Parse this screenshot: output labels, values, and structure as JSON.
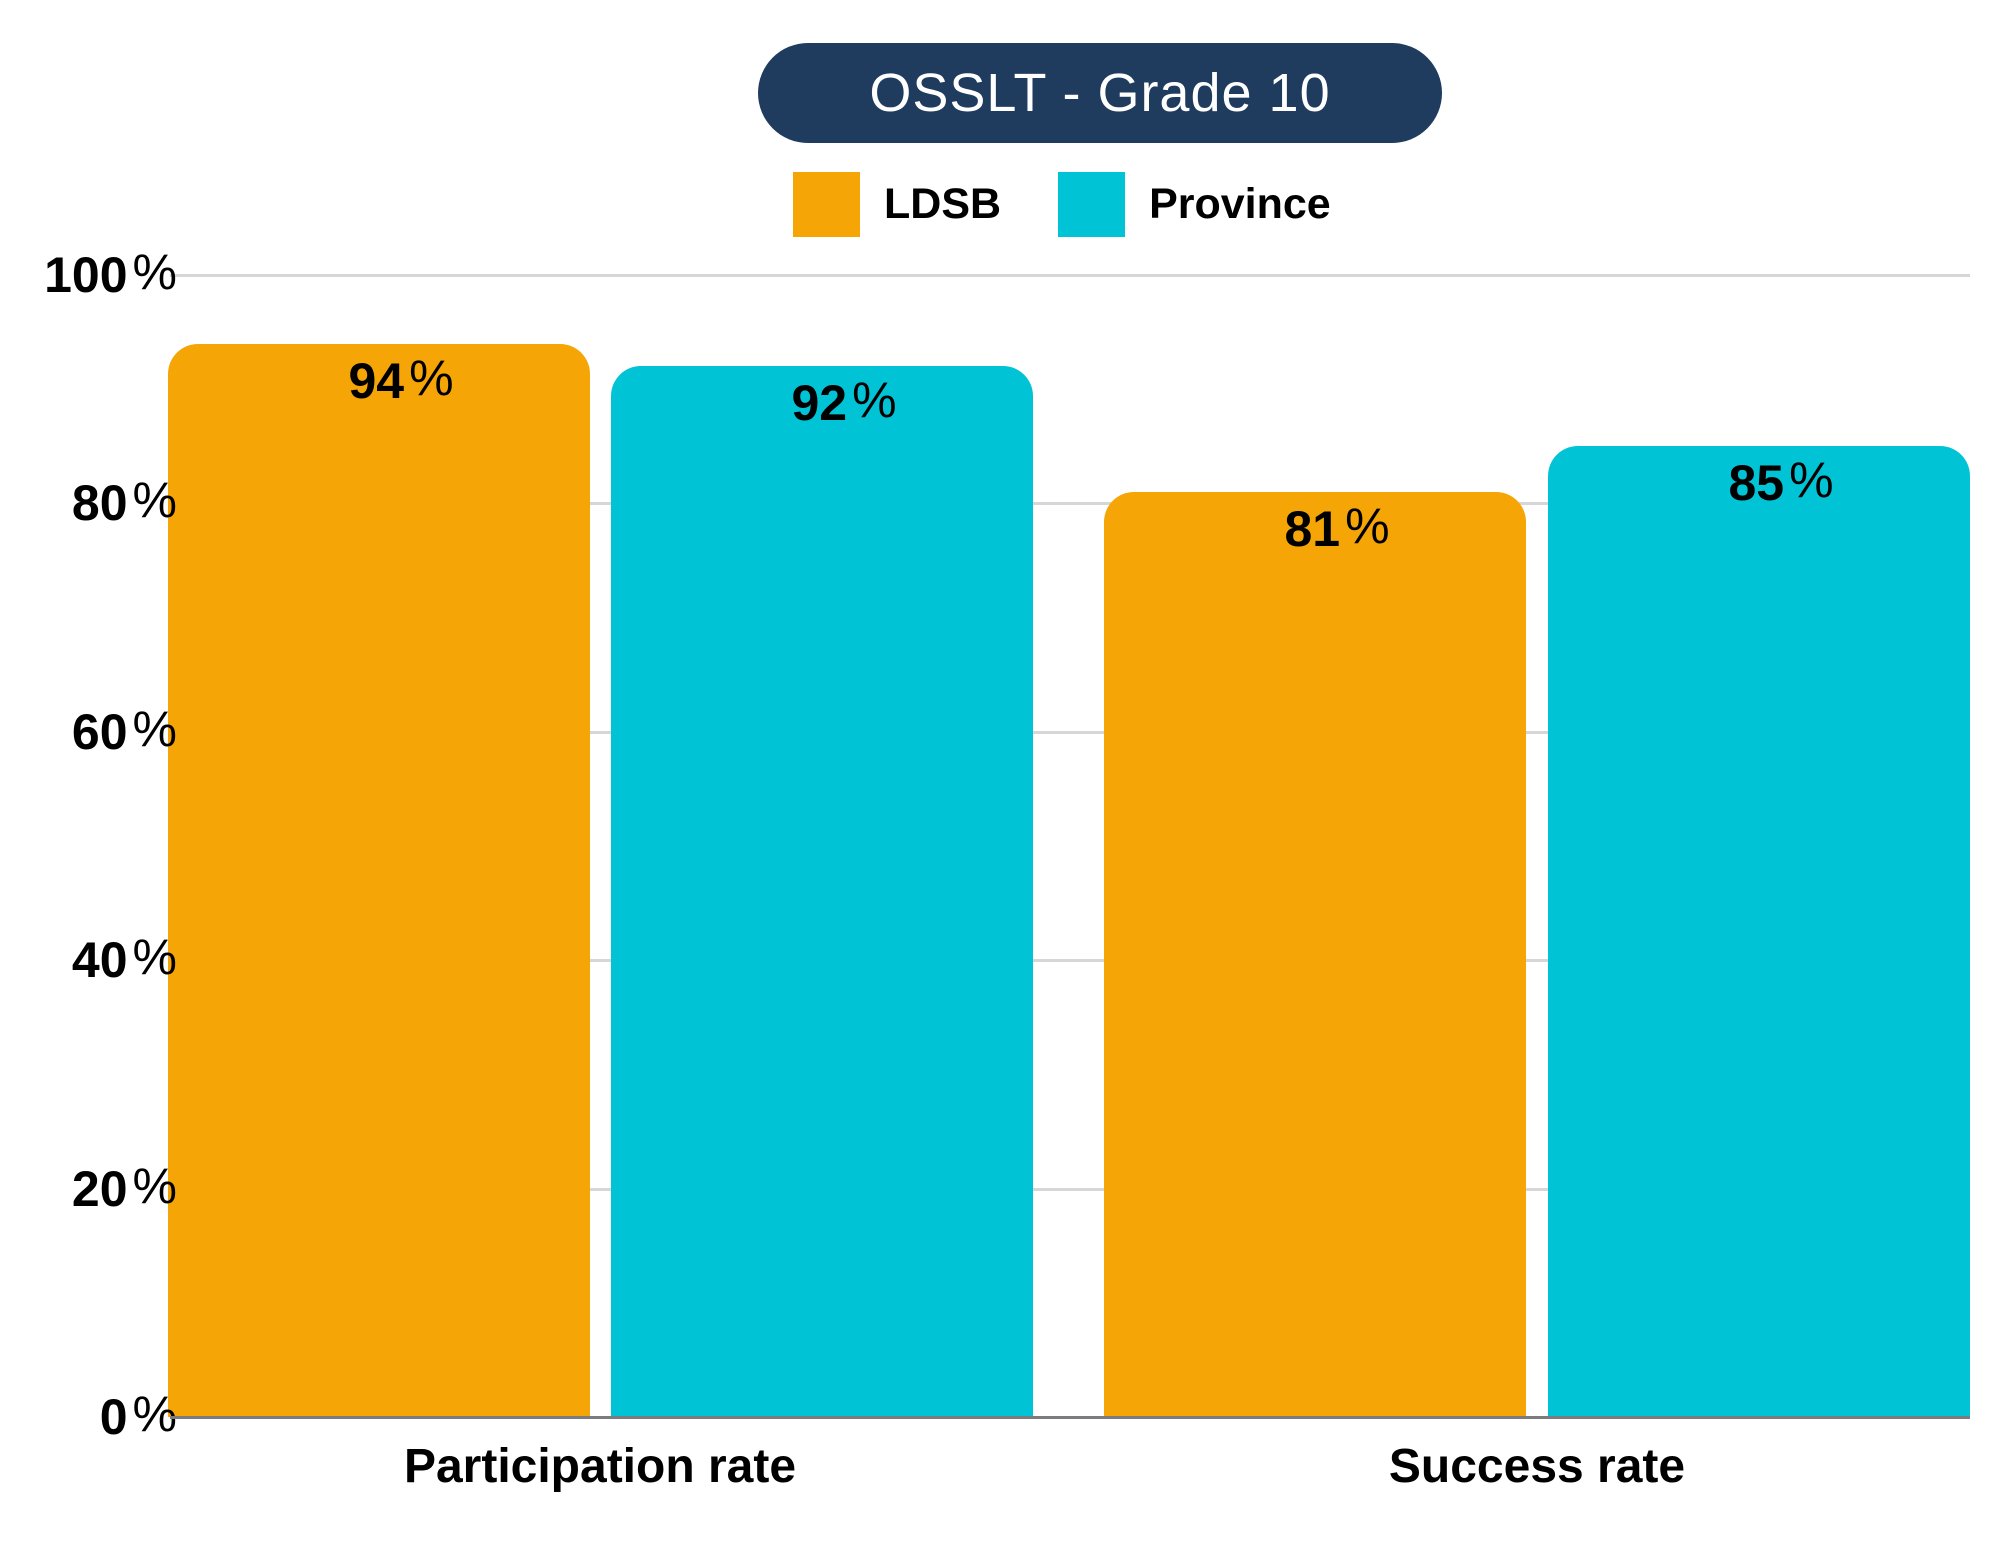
{
  "chart_data": {
    "type": "bar",
    "title": "OSSLT - Grade 10",
    "categories": [
      "Participation rate",
      "Success rate"
    ],
    "series": [
      {
        "name": "LDSB",
        "color": "#F5A505",
        "values": [
          94,
          81
        ]
      },
      {
        "name": "Province",
        "color": "#00C4D6",
        "values": [
          92,
          85
        ]
      }
    ],
    "value_suffix": "%",
    "ylim": [
      0,
      100
    ],
    "yticks": [
      0,
      20,
      40,
      60,
      80,
      100
    ],
    "ytick_suffix": "%",
    "grid": true,
    "legend_position": "top-center",
    "bar_labels_inside_top": true
  },
  "colors": {
    "background": "#FFFFFF",
    "title_bg": "#1F3B5E",
    "title_text": "#FFFFFF",
    "gridline": "#D6D6D6",
    "axis_line": "#7C7C80",
    "text": "#000000"
  }
}
